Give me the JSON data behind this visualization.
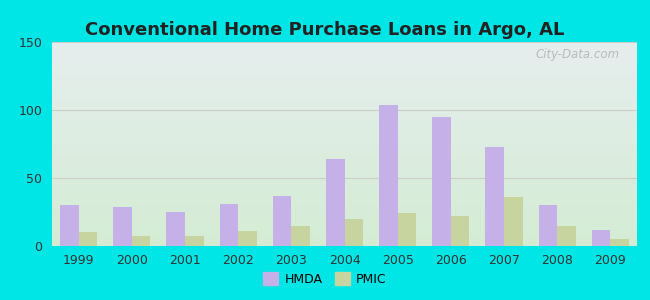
{
  "title": "Conventional Home Purchase Loans in Argo, AL",
  "years": [
    1999,
    2000,
    2001,
    2002,
    2003,
    2004,
    2005,
    2006,
    2007,
    2008,
    2009
  ],
  "hmda": [
    30,
    29,
    25,
    31,
    37,
    64,
    104,
    95,
    73,
    30,
    12
  ],
  "pmic": [
    10,
    7,
    7,
    11,
    15,
    20,
    24,
    22,
    36,
    15,
    5
  ],
  "hmda_color": "#c5b0e8",
  "pmic_color": "#c8d4a0",
  "bg_outer": "#00e5e5",
  "bg_plot_top": "#e6eeee",
  "bg_plot_bottom": "#d4ecd4",
  "ylim": [
    0,
    150
  ],
  "yticks": [
    0,
    50,
    100,
    150
  ],
  "grid_color": "#cccccc",
  "title_fontsize": 13,
  "watermark": "City-Data.com",
  "legend_hmda": "HMDA",
  "legend_pmic": "PMIC"
}
